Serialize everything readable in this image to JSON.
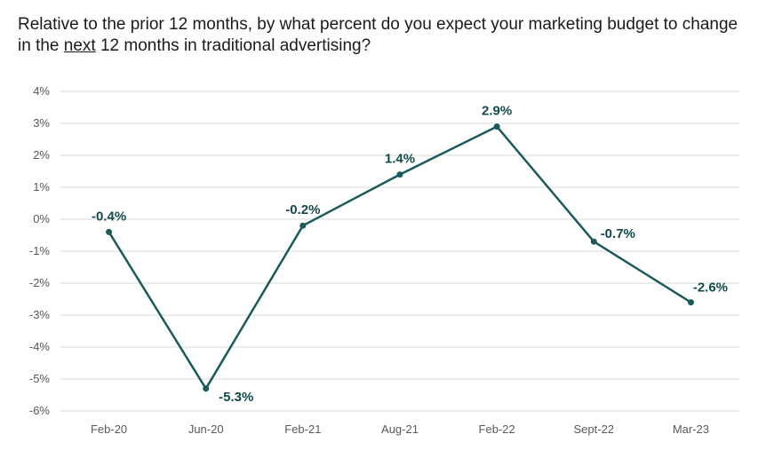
{
  "title": {
    "part1": "Relative to the prior 12 months, by what percent do you expect your marketing budget to change in the ",
    "underlined": "next",
    "part2": " 12 months in traditional advertising?"
  },
  "colors": {
    "line": "#1b5a5b",
    "label": "#12494a",
    "grid": "#d9d9d9",
    "tick": "#595959"
  },
  "chart_data": {
    "type": "line",
    "title": "Relative to the prior 12 months, by what percent do you expect your marketing budget to change in the next 12 months in traditional advertising?",
    "categories": [
      "Feb-20",
      "Jun-20",
      "Feb-21",
      "Aug-21",
      "Feb-22",
      "Sept-22",
      "Mar-23"
    ],
    "series": [
      {
        "values": [
          -0.4,
          -5.3,
          -0.2,
          1.4,
          2.9,
          -0.7,
          -2.6
        ]
      }
    ],
    "data_labels": [
      "-0.4%",
      "-5.3%",
      "-0.2%",
      "1.4%",
      "2.9%",
      "-0.7%",
      "-2.6%"
    ],
    "yticks": [
      4,
      3,
      2,
      1,
      0,
      -1,
      -2,
      -3,
      -4,
      -5,
      -6
    ],
    "ytick_labels": [
      "4%",
      "3%",
      "2%",
      "1%",
      "0%",
      "-1%",
      "-2%",
      "-3%",
      "-4%",
      "-5%",
      "-6%"
    ],
    "ylim": [
      -6,
      4
    ],
    "xlabel": "",
    "ylabel": "",
    "grid": true,
    "legend": "none"
  }
}
